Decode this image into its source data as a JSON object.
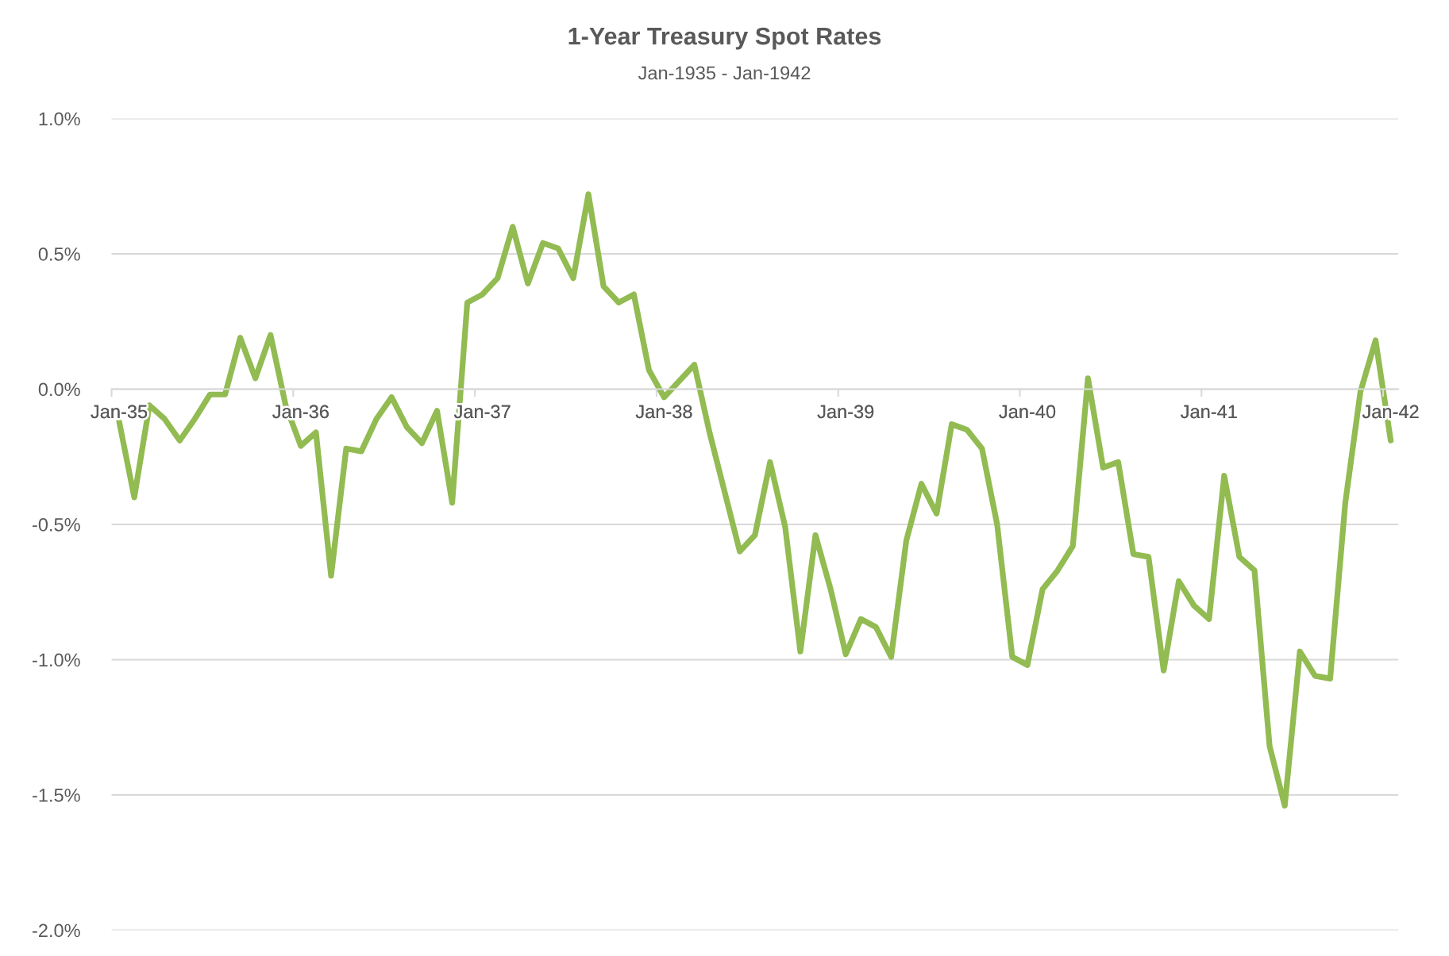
{
  "chart_data": {
    "type": "line",
    "title": "1-Year Treasury Spot Rates",
    "subtitle": "Jan-1935 - Jan-1942",
    "categories": [
      "Jan-35",
      null,
      null,
      null,
      null,
      null,
      null,
      null,
      null,
      null,
      null,
      null,
      "Jan-36",
      null,
      null,
      null,
      null,
      null,
      null,
      null,
      null,
      null,
      null,
      null,
      "Jan-37",
      null,
      null,
      null,
      null,
      null,
      null,
      null,
      null,
      null,
      null,
      null,
      "Jan-38",
      null,
      null,
      null,
      null,
      null,
      null,
      null,
      null,
      null,
      null,
      null,
      "Jan-39",
      null,
      null,
      null,
      null,
      null,
      null,
      null,
      null,
      null,
      null,
      null,
      "Jan-40",
      null,
      null,
      null,
      null,
      null,
      null,
      null,
      null,
      null,
      null,
      null,
      "Jan-41",
      null,
      null,
      null,
      null,
      null,
      null,
      null,
      null,
      null,
      null,
      null,
      "Jan-42"
    ],
    "series": [
      {
        "color": "#92bb52",
        "values": [
          -0.12,
          -0.4,
          -0.06,
          -0.11,
          -0.19,
          -0.11,
          -0.02,
          -0.02,
          0.19,
          0.04,
          0.2,
          -0.06,
          -0.21,
          -0.16,
          -0.69,
          -0.22,
          -0.23,
          -0.11,
          -0.03,
          -0.14,
          -0.2,
          -0.08,
          -0.42,
          0.32,
          0.35,
          0.41,
          0.6,
          0.39,
          0.54,
          0.52,
          0.41,
          0.72,
          0.38,
          0.32,
          0.35,
          0.07,
          -0.03,
          0.03,
          0.09,
          -0.16,
          -0.38,
          -0.6,
          -0.54,
          -0.27,
          -0.51,
          -0.97,
          -0.54,
          -0.74,
          -0.98,
          -0.85,
          -0.88,
          -0.99,
          -0.56,
          -0.35,
          -0.46,
          -0.13,
          -0.15,
          -0.22,
          -0.5,
          -0.99,
          -1.02,
          -0.74,
          -0.67,
          -0.58,
          0.04,
          -0.29,
          -0.27,
          -0.61,
          -0.62,
          -1.04,
          -0.71,
          -0.8,
          -0.85,
          -0.32,
          -0.62,
          -0.67,
          -1.32,
          -1.54,
          -0.97,
          -1.06,
          -1.07,
          -0.42,
          -0.01,
          0.18,
          -0.19
        ]
      }
    ],
    "ylim": [
      -2.0,
      1.0
    ],
    "yticks": [
      {
        "value": -2.0,
        "label": "-2.0%"
      },
      {
        "value": -1.5,
        "label": "-1.5%"
      },
      {
        "value": -1.0,
        "label": "-1.0%"
      },
      {
        "value": -0.5,
        "label": "-0.5%"
      },
      {
        "value": 0.0,
        "label": "0.0%"
      },
      {
        "value": 0.5,
        "label": "0.5%"
      },
      {
        "value": 1.0,
        "label": "1.0%"
      }
    ],
    "grid": "y",
    "marker": "none",
    "line_style": "solid"
  }
}
